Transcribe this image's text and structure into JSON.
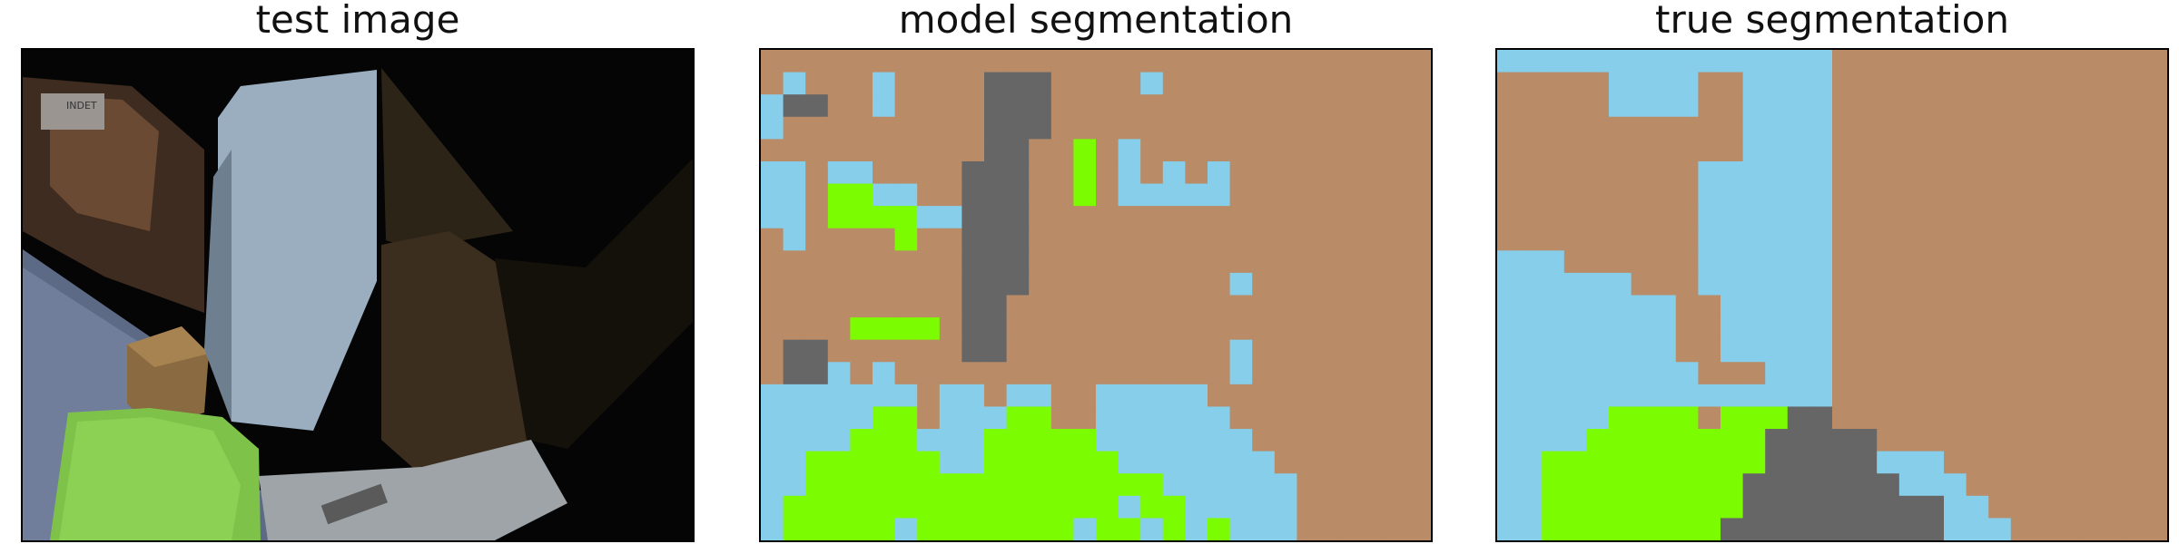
{
  "panels": [
    {
      "title": "test image"
    },
    {
      "title": "model segmentation"
    },
    {
      "title": "true segmentation"
    }
  ],
  "colors": {
    "wall": "#b98b66",
    "sky": "#87ceeb",
    "grass": "#7cfc00",
    "object": "#666666"
  }
}
